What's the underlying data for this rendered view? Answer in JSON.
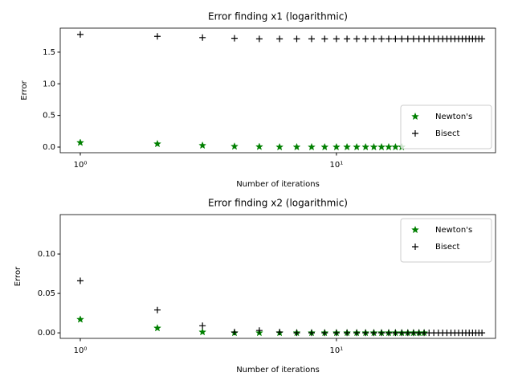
{
  "chart_data": [
    {
      "type": "scatter",
      "title": "Error finding x1 (logarithmic)",
      "x_label": "Number of iterations",
      "y_label": "Error",
      "x_scale": "log",
      "xlim": [
        0.835,
        41.8
      ],
      "xticks": [
        {
          "value": 1,
          "label": "10⁰"
        },
        {
          "value": 10,
          "label": "10¹"
        }
      ],
      "ylim": [
        -0.089,
        1.88
      ],
      "yticks": [
        {
          "value": 0,
          "label": "0.0"
        },
        0.5,
        {
          "value": 1,
          "label": "1.0"
        },
        1.5
      ],
      "legend": "lower right",
      "series": [
        {
          "name": "Newton's",
          "color": "green",
          "marker": "star",
          "x": [
            1,
            2,
            3,
            4,
            5,
            6,
            7,
            8,
            9,
            10,
            11,
            12,
            13,
            14,
            15,
            16,
            17,
            18
          ],
          "values": [
            0.07,
            0.05,
            0.025,
            0.01,
            0.005,
            0,
            0,
            0,
            0,
            0,
            0,
            0,
            0,
            0,
            0,
            0,
            0,
            0
          ]
        },
        {
          "name": "Bisect",
          "color": "black",
          "marker": "plus",
          "x": [
            1,
            2,
            3,
            4,
            5,
            6,
            7,
            8,
            9,
            10,
            11,
            12,
            13,
            14,
            15,
            16,
            17,
            18,
            19,
            20,
            21,
            22,
            23,
            24,
            25,
            26,
            27,
            28,
            29,
            30,
            31,
            32,
            33,
            34,
            35,
            36,
            37
          ],
          "values": [
            1.78,
            1.75,
            1.73,
            1.72,
            1.71,
            1.71,
            1.71,
            1.71,
            1.71,
            1.71,
            1.71,
            1.71,
            1.71,
            1.71,
            1.71,
            1.71,
            1.71,
            1.71,
            1.71,
            1.71,
            1.71,
            1.71,
            1.71,
            1.71,
            1.71,
            1.71,
            1.71,
            1.71,
            1.71,
            1.71,
            1.71,
            1.71,
            1.71,
            1.71,
            1.71,
            1.71,
            1.71
          ]
        }
      ]
    },
    {
      "type": "scatter",
      "title": "Error finding x2 (logarithmic)",
      "x_label": "Number of iterations",
      "y_label": "Error",
      "x_scale": "log",
      "xlim": [
        0.835,
        41.8
      ],
      "xticks": [
        {
          "value": 1,
          "label": "10⁰"
        },
        {
          "value": 10,
          "label": "10¹"
        }
      ],
      "ylim": [
        -0.007,
        0.15
      ],
      "yticks": [
        {
          "value": 0,
          "label": "0.00"
        },
        {
          "value": 0.05,
          "label": "0.05"
        },
        {
          "value": 0.1,
          "label": "0.10"
        }
      ],
      "legend": "upper right",
      "series": [
        {
          "name": "Newton's",
          "color": "green",
          "marker": "star",
          "x": [
            1,
            2,
            3,
            4,
            5,
            6,
            7,
            8,
            9,
            10,
            11,
            12,
            13,
            14,
            15,
            16,
            17,
            18,
            19,
            20,
            21,
            22
          ],
          "values": [
            0.017,
            0.006,
            0.001,
            0,
            0,
            0,
            0,
            0,
            0,
            0,
            0,
            0,
            0,
            0,
            0,
            0,
            0,
            0,
            0,
            0,
            0,
            0
          ]
        },
        {
          "name": "Bisect",
          "color": "black",
          "marker": "plus",
          "x": [
            1,
            2,
            3,
            4,
            5,
            6,
            7,
            8,
            9,
            10,
            11,
            12,
            13,
            14,
            15,
            16,
            17,
            18,
            19,
            20,
            21,
            22,
            23,
            24,
            25,
            26,
            27,
            28,
            29,
            30,
            31,
            32,
            33,
            34,
            35,
            36,
            37
          ],
          "values": [
            0.066,
            0.029,
            0.009,
            0.001,
            0.003,
            0.001,
            0,
            0,
            0,
            0,
            0,
            0,
            0,
            0,
            0,
            0,
            0,
            0,
            0,
            0,
            0,
            0,
            0,
            0,
            0,
            0,
            0,
            0,
            0,
            0,
            0,
            0,
            0,
            0,
            0,
            0,
            0
          ]
        }
      ]
    }
  ]
}
